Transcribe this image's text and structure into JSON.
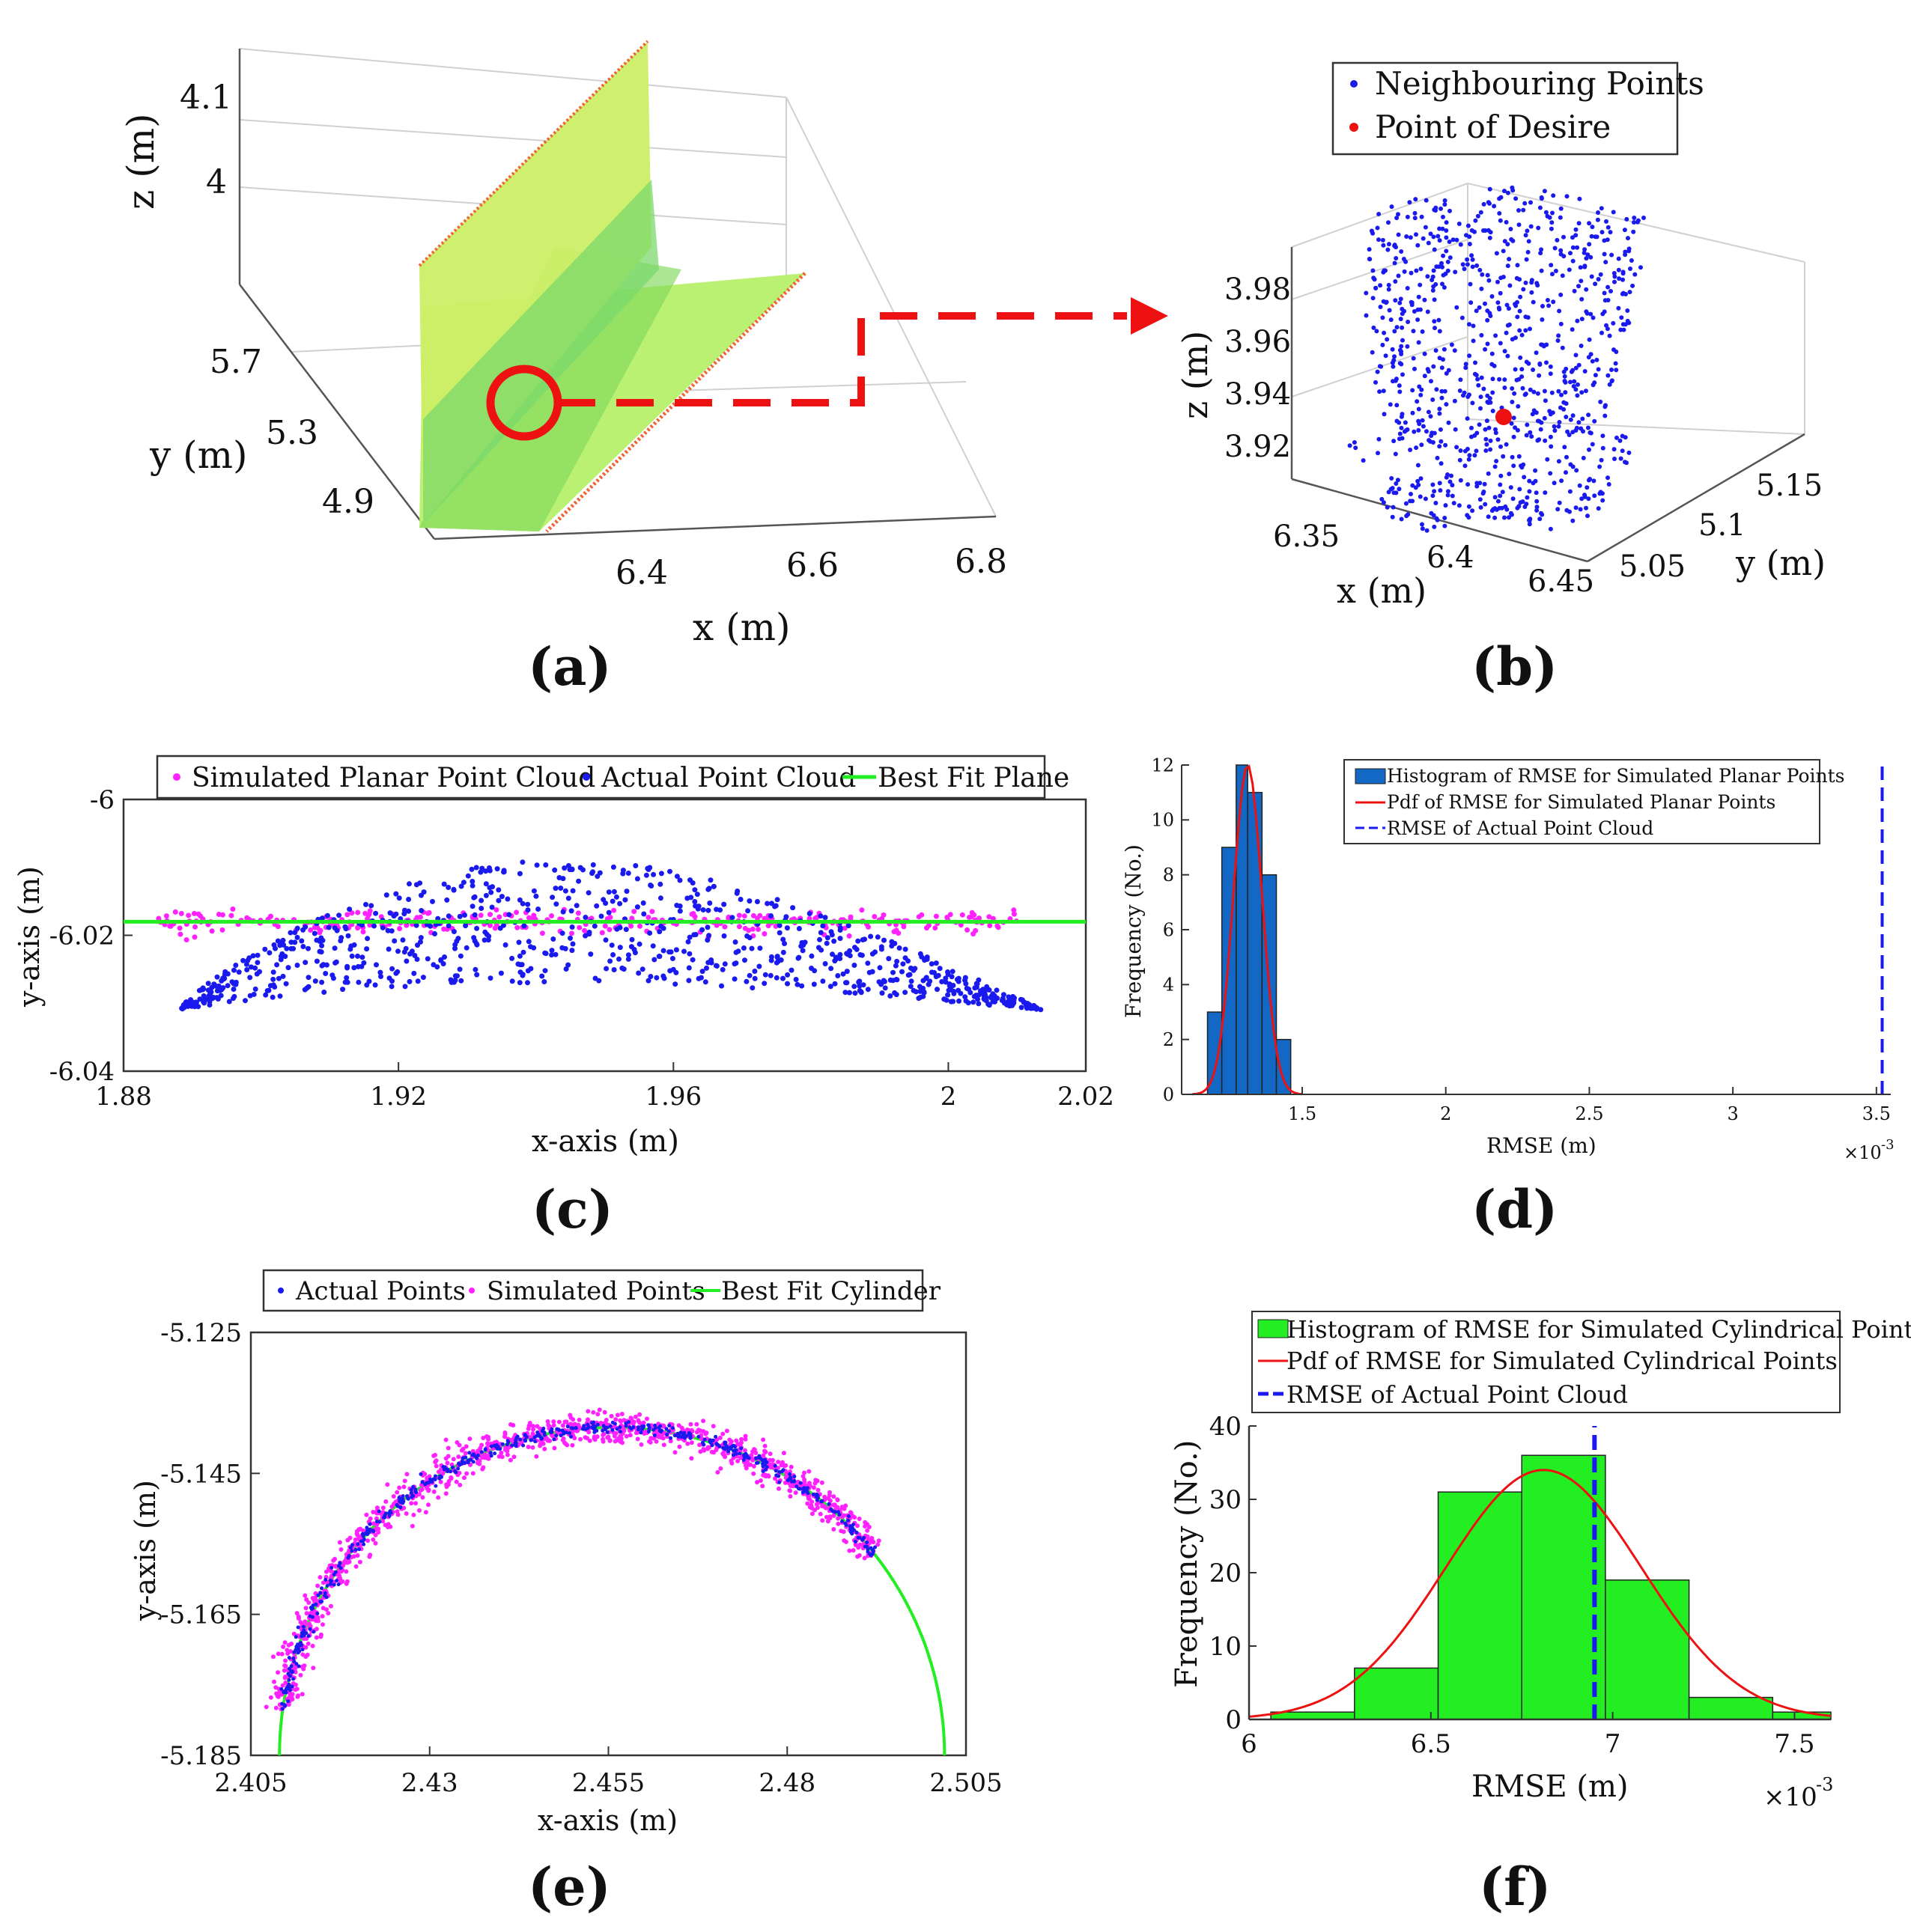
{
  "figure": {
    "colors": {
      "blue": "#1a1aee",
      "red": "#ee1111",
      "magenta": "#ff22ff",
      "green": "#22ee22",
      "lime": "#00ff00",
      "histblue": "#1268c4",
      "axis": "#333333",
      "grid": "#d8d8d8"
    }
  },
  "chart_data": [
    {
      "id": "a",
      "type": "scatter",
      "panel_label": "(a)",
      "title": "",
      "xlabel": "x (m)",
      "ylabel": "y (m)",
      "zlabel": "z (m)",
      "x_ticks": [
        "6.4",
        "6.6",
        "6.8"
      ],
      "y_ticks": [
        "5.7",
        "5.3",
        "4.9"
      ],
      "z_ticks": [
        "4.1",
        "4"
      ],
      "description_marks": "3D L-shaped point cloud (vertical wall + horizontal floor), colored green/yellow with red edges; circled point links to panel (b)"
    },
    {
      "id": "b",
      "type": "scatter",
      "panel_label": "(b)",
      "xlabel": "x (m)",
      "ylabel": "y (m)",
      "zlabel": "z (m)",
      "x_ticks": [
        "6.35",
        "6.4",
        "6.45"
      ],
      "y_ticks": [
        "5.05",
        "5.1",
        "5.15"
      ],
      "z_ticks": [
        "3.98",
        "3.96",
        "3.94",
        "3.92"
      ],
      "legend": [
        "Neighbouring Points",
        "Point of Desire"
      ],
      "legend_position": "top",
      "series": [
        {
          "name": "Neighbouring Points",
          "color": "blue",
          "count": 900
        },
        {
          "name": "Point of Desire",
          "color": "red",
          "point": [
            6.4,
            5.1,
            3.935
          ]
        }
      ]
    },
    {
      "id": "c",
      "type": "scatter",
      "panel_label": "(c)",
      "xlabel": "x-axis (m)",
      "ylabel": "y-axis (m)",
      "xlim": [
        1.88,
        2.02
      ],
      "ylim": [
        -6.04,
        -6.0
      ],
      "x_ticks": [
        "1.88",
        "1.92",
        "1.96",
        "2",
        "2.02"
      ],
      "y_ticks": [
        "-6",
        "-6.02",
        "-6.04"
      ],
      "legend": [
        "Simulated Planar Point Cloud",
        "Actual Point Cloud",
        "Best Fit Plane"
      ],
      "legend_position": "top",
      "series": [
        {
          "name": "Simulated Planar Point Cloud",
          "color": "magenta",
          "x_range": [
            1.885,
            2.01
          ],
          "y_center": -6.018,
          "y_spread": 0.0008
        },
        {
          "name": "Actual Point Cloud",
          "color": "blue",
          "x_range": [
            1.888,
            2.014
          ],
          "shape": "arch",
          "y_min": -6.031,
          "y_peak": -6.009,
          "peak_x": 1.945
        },
        {
          "name": "Best Fit Plane",
          "color": "lime",
          "y": -6.018
        }
      ]
    },
    {
      "id": "d",
      "type": "bar",
      "panel_label": "(d)",
      "xlabel": "RMSE (m)",
      "ylabel": "Frequency (No.)",
      "x_exponent": "×10",
      "x_exponent_power": "-3",
      "xlim": [
        1.08,
        3.55
      ],
      "ylim": [
        0,
        12
      ],
      "x_ticks": [
        "1.5",
        "2",
        "2.5",
        "3",
        "3.5"
      ],
      "y_ticks": [
        "0",
        "2",
        "4",
        "6",
        "8",
        "10",
        "12"
      ],
      "legend": [
        "Histogram of RMSE for Simulated Planar Points",
        "Pdf of RMSE for Simulated Planar Points",
        "RMSE of Actual Point Cloud"
      ],
      "legend_position": "top-right",
      "bin_edges": [
        1.17,
        1.22,
        1.27,
        1.31,
        1.36,
        1.41,
        1.46
      ],
      "values": [
        3,
        9,
        12,
        11,
        8,
        2
      ],
      "pdf": {
        "mean": 1.31,
        "sd": 0.05,
        "peak": 12
      },
      "actual_rmse": 3.52
    },
    {
      "id": "e",
      "type": "scatter",
      "panel_label": "(e)",
      "xlabel": "x-axis (m)",
      "ylabel": "y-axis (m)",
      "xlim": [
        2.405,
        2.505
      ],
      "ylim": [
        -5.185,
        -5.125
      ],
      "x_ticks": [
        "2.405",
        "2.43",
        "2.455",
        "2.48",
        "2.505"
      ],
      "y_ticks": [
        "-5.125",
        "-5.145",
        "-5.165",
        "-5.185"
      ],
      "legend": [
        "Actual Points",
        "Simulated Points",
        "Best Fit Cylinder"
      ],
      "legend_position": "top",
      "cylinder": {
        "cx": 2.4555,
        "cy": -5.185,
        "r": 0.0465
      },
      "arc_start_deg": 0,
      "arc_end_deg": 225,
      "series": [
        {
          "name": "Actual Points",
          "color": "blue"
        },
        {
          "name": "Simulated Points",
          "color": "magenta"
        },
        {
          "name": "Best Fit Cylinder",
          "color": "lime"
        }
      ]
    },
    {
      "id": "f",
      "type": "bar",
      "panel_label": "(f)",
      "xlabel": "RMSE (m)",
      "ylabel": "Frequency (No.)",
      "x_exponent": "×10",
      "x_exponent_power": "-3",
      "xlim": [
        6.0,
        7.6
      ],
      "ylim": [
        0,
        40
      ],
      "x_ticks": [
        "6",
        "6.5",
        "7",
        "7.5"
      ],
      "y_ticks": [
        "0",
        "10",
        "20",
        "30",
        "40"
      ],
      "legend": [
        "Histogram of RMSE for Simulated Cylindrical Points",
        "Pdf of RMSE for Simulated Cylindrical Points",
        "RMSE of Actual Point Cloud"
      ],
      "legend_position": "top",
      "bin_edges": [
        6.06,
        6.29,
        6.52,
        6.75,
        6.98,
        7.21,
        7.44,
        7.6
      ],
      "values": [
        1,
        7,
        31,
        36,
        19,
        3,
        1
      ],
      "pdf": {
        "mean": 6.81,
        "sd": 0.27,
        "peak": 34
      },
      "actual_rmse": 6.95
    }
  ]
}
